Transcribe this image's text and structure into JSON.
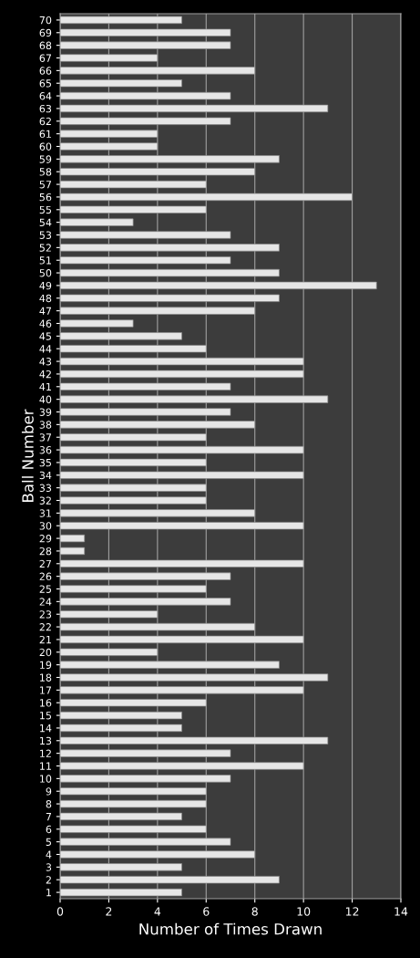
{
  "chart_data": {
    "type": "bar",
    "orientation": "horizontal",
    "xlabel": "Number of Times Drawn",
    "ylabel": "Ball Number",
    "categories": [
      "70",
      "69",
      "68",
      "67",
      "66",
      "65",
      "64",
      "63",
      "62",
      "61",
      "60",
      "59",
      "58",
      "57",
      "56",
      "55",
      "54",
      "53",
      "52",
      "51",
      "50",
      "49",
      "48",
      "47",
      "46",
      "45",
      "44",
      "43",
      "42",
      "41",
      "40",
      "39",
      "38",
      "37",
      "36",
      "35",
      "34",
      "33",
      "32",
      "31",
      "30",
      "29",
      "28",
      "27",
      "26",
      "25",
      "24",
      "23",
      "22",
      "21",
      "20",
      "19",
      "18",
      "17",
      "16",
      "15",
      "14",
      "13",
      "12",
      "11",
      "10",
      "9",
      "8",
      "7",
      "6",
      "5",
      "4",
      "3",
      "2",
      "1"
    ],
    "values": [
      5,
      7,
      7,
      4,
      8,
      5,
      7,
      11,
      7,
      4,
      4,
      9,
      8,
      6,
      12,
      6,
      3,
      7,
      9,
      7,
      9,
      13,
      9,
      8,
      3,
      5,
      6,
      10,
      10,
      7,
      11,
      7,
      8,
      6,
      10,
      6,
      10,
      6,
      6,
      8,
      10,
      1,
      1,
      10,
      7,
      6,
      7,
      4,
      8,
      10,
      4,
      9,
      11,
      10,
      6,
      5,
      5,
      11,
      7,
      10,
      7,
      6,
      6,
      5,
      6,
      7,
      8,
      5,
      9,
      5
    ],
    "color": "#e6e6e6",
    "xlim": [
      0,
      14
    ],
    "xticks": [
      0,
      2,
      4,
      6,
      8,
      10,
      12,
      14
    ],
    "grid": "x"
  }
}
